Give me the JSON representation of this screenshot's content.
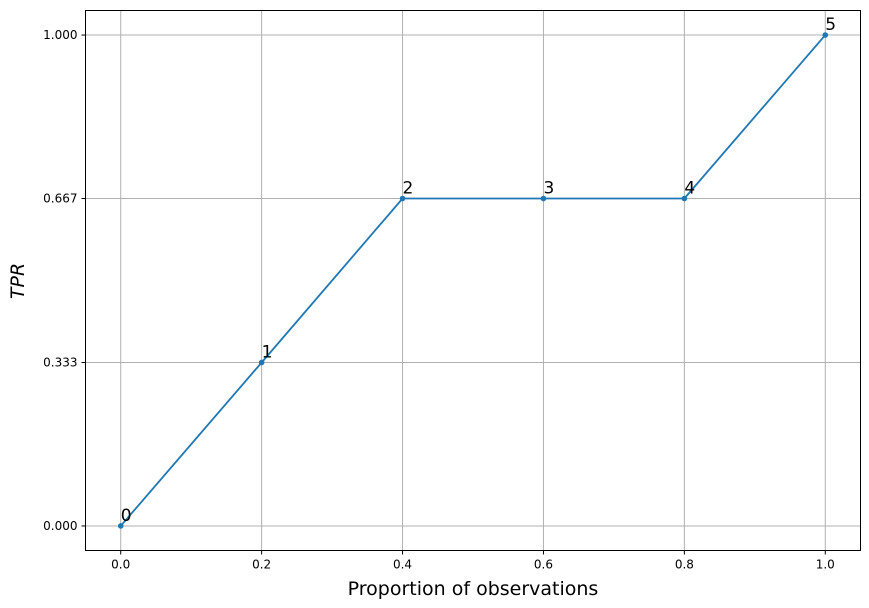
{
  "chart_data": {
    "type": "line",
    "xlabel": "Proportion of observations",
    "ylabel": "TPR",
    "xlim": [
      -0.05,
      1.05
    ],
    "ylim": [
      -0.05,
      1.05
    ],
    "x_ticks": [
      0.0,
      0.2,
      0.4,
      0.6,
      0.8,
      1.0
    ],
    "x_tick_labels": [
      "0.0",
      "0.2",
      "0.4",
      "0.6",
      "0.8",
      "1.0"
    ],
    "y_ticks": [
      0.0,
      0.333,
      0.667,
      1.0
    ],
    "y_tick_labels": [
      "0.000",
      "0.333",
      "0.667",
      "1.000"
    ],
    "grid": true,
    "series": [
      {
        "color": "#1f77b4",
        "x": [
          0.0,
          0.2,
          0.4,
          0.6,
          0.8,
          1.0
        ],
        "y": [
          0.0,
          0.333,
          0.667,
          0.667,
          0.667,
          1.0
        ],
        "labels": [
          "0",
          "1",
          "2",
          "3",
          "4",
          "5"
        ]
      }
    ]
  }
}
